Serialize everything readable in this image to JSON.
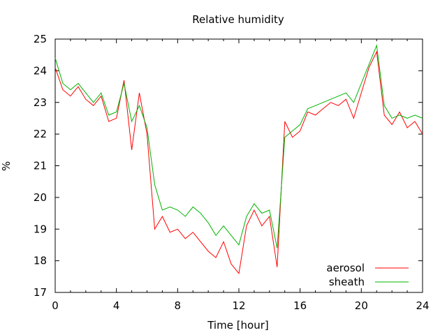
{
  "chart_data": {
    "type": "line",
    "title": "Relative humidity",
    "xlabel": "Time [hour]",
    "ylabel": "%",
    "xlim": [
      0,
      24
    ],
    "ylim": [
      17,
      25
    ],
    "xticks": [
      0,
      4,
      8,
      12,
      16,
      20,
      24
    ],
    "yticks": [
      17,
      18,
      19,
      20,
      21,
      22,
      23,
      24,
      25
    ],
    "grid": false,
    "legend_position": "bottom-right",
    "series": [
      {
        "name": "aerosol",
        "color": "#ff0000",
        "x": [
          0,
          0.5,
          1,
          1.5,
          2,
          2.5,
          3,
          3.5,
          4,
          4.5,
          5,
          5.5,
          6,
          6.5,
          7,
          7.5,
          8,
          8.5,
          9,
          9.5,
          10,
          10.5,
          11,
          11.5,
          12,
          12.5,
          13,
          13.5,
          14,
          14.5,
          15,
          15.5,
          16,
          16.5,
          17,
          17.5,
          18,
          18.5,
          19,
          19.5,
          20,
          20.5,
          21,
          21.5,
          22,
          22.5,
          23,
          23.5,
          24
        ],
        "y": [
          24.1,
          23.4,
          23.2,
          23.5,
          23.1,
          22.9,
          23.2,
          22.4,
          22.5,
          23.7,
          21.5,
          23.3,
          22.0,
          19.0,
          19.4,
          18.9,
          19.0,
          18.7,
          18.9,
          18.6,
          18.3,
          18.1,
          18.6,
          17.9,
          17.6,
          19.1,
          19.6,
          19.1,
          19.4,
          17.8,
          22.4,
          21.9,
          22.1,
          22.7,
          22.6,
          22.8,
          23.0,
          22.9,
          23.1,
          22.5,
          23.3,
          24.1,
          24.6,
          22.6,
          22.3,
          22.7,
          22.2,
          22.4,
          22.0
        ]
      },
      {
        "name": "sheath",
        "color": "#00b400",
        "x": [
          0,
          0.5,
          1,
          1.5,
          2,
          2.5,
          3,
          3.5,
          4,
          4.5,
          5,
          5.5,
          6,
          6.5,
          7,
          7.5,
          8,
          8.5,
          9,
          9.5,
          10,
          10.5,
          11,
          11.5,
          12,
          12.5,
          13,
          13.5,
          14,
          14.5,
          15,
          15.5,
          16,
          16.5,
          17,
          17.5,
          18,
          18.5,
          19,
          19.5,
          20,
          20.5,
          21,
          21.5,
          22,
          22.5,
          23,
          23.5,
          24
        ],
        "y": [
          24.4,
          23.6,
          23.4,
          23.6,
          23.3,
          23.0,
          23.3,
          22.6,
          22.7,
          23.6,
          22.4,
          22.9,
          22.2,
          20.4,
          19.6,
          19.7,
          19.6,
          19.4,
          19.7,
          19.5,
          19.2,
          18.8,
          19.1,
          18.8,
          18.5,
          19.4,
          19.8,
          19.5,
          19.6,
          18.4,
          21.9,
          22.1,
          22.3,
          22.8,
          22.9,
          23.0,
          23.1,
          23.2,
          23.3,
          23.0,
          23.6,
          24.2,
          24.8,
          22.9,
          22.5,
          22.6,
          22.5,
          22.6,
          22.5
        ]
      }
    ]
  }
}
